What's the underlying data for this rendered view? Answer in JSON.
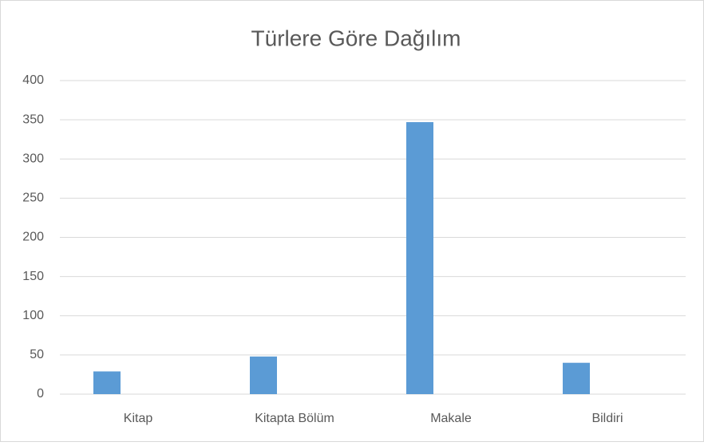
{
  "chart_data": {
    "type": "bar",
    "title": "Türlere Göre Dağılım",
    "categories": [
      "Kitap",
      "Kitapta Bölüm",
      "Makale",
      "Bildiri"
    ],
    "values": [
      29,
      48,
      347,
      40
    ],
    "color": "#5b9bd5",
    "ylim": [
      0,
      400
    ],
    "yticks": [
      0,
      50,
      100,
      150,
      200,
      250,
      300,
      350,
      400
    ],
    "grid": true
  }
}
